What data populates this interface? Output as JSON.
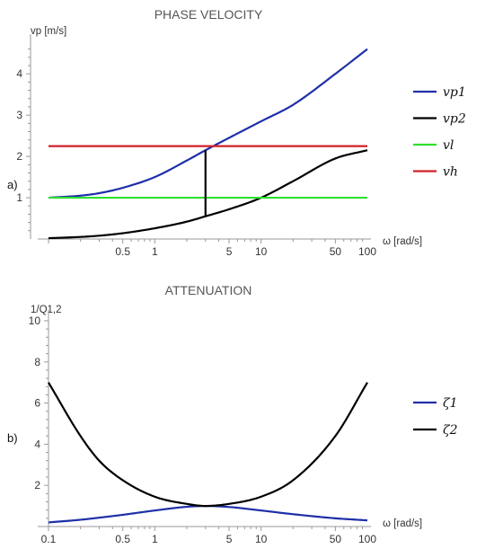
{
  "chart_data": [
    {
      "type": "line",
      "title": "PHASE VELOCITY",
      "panel_label": "a)",
      "xlabel": "ω [rad/s]",
      "ylabel": "vp [m/s]",
      "x_scale": "log",
      "xlim": [
        0.1,
        100
      ],
      "ylim": [
        0,
        4.7
      ],
      "x_ticks": [
        0.5,
        1,
        5,
        10,
        50,
        100
      ],
      "x_tick_labels": [
        "0.5",
        "1",
        "5",
        "10",
        "50",
        "100"
      ],
      "y_ticks": [
        1,
        2,
        3,
        4
      ],
      "y_tick_labels": [
        "1",
        "2",
        "3",
        "4"
      ],
      "legend_position": "right",
      "series": [
        {
          "name": "vp1",
          "color": "#1f2fa8",
          "x": [
            0.1,
            0.2,
            0.3,
            0.5,
            1,
            2,
            3,
            5,
            10,
            20,
            50,
            100
          ],
          "y": [
            1.0,
            1.05,
            1.11,
            1.24,
            1.5,
            1.9,
            2.15,
            2.45,
            2.85,
            3.25,
            4.0,
            4.6
          ]
        },
        {
          "name": "vp2",
          "color": "#000000",
          "x": [
            0.1,
            0.2,
            0.3,
            0.5,
            1,
            2,
            3,
            5,
            10,
            20,
            50,
            100
          ],
          "y": [
            0.02,
            0.05,
            0.08,
            0.14,
            0.26,
            0.42,
            0.55,
            0.72,
            1.0,
            1.4,
            1.95,
            2.15
          ]
        },
        {
          "name": "vl",
          "color": "#2ee02e",
          "x": [
            0.1,
            100
          ],
          "y": [
            1.0,
            1.0
          ]
        },
        {
          "name": "vh",
          "color": "#d0202a",
          "x": [
            0.1,
            100
          ],
          "y": [
            2.25,
            2.25
          ]
        }
      ],
      "annotations": [
        {
          "type": "vertical_segment",
          "x": 3,
          "y_from": 0.55,
          "y_to": 2.15,
          "color": "#000000"
        }
      ]
    },
    {
      "type": "line",
      "title": "ATTENUATION",
      "panel_label": "b)",
      "xlabel": "ω [rad/s]",
      "ylabel": "1/Q1,2",
      "x_scale": "log",
      "xlim": [
        0.1,
        100
      ],
      "ylim": [
        0,
        10
      ],
      "x_ticks": [
        0.1,
        0.5,
        1,
        5,
        10,
        50,
        100
      ],
      "x_tick_labels": [
        "0.1",
        "0.5",
        "1",
        "5",
        "10",
        "50",
        "100"
      ],
      "y_ticks": [
        2,
        4,
        6,
        8,
        10
      ],
      "y_tick_labels": [
        "2",
        "4",
        "6",
        "8",
        "10"
      ],
      "legend_position": "right",
      "series": [
        {
          "name": "ζ1",
          "color": "#1f2fa8",
          "x": [
            0.1,
            0.2,
            0.3,
            0.5,
            1,
            2,
            3,
            5,
            10,
            20,
            50,
            100
          ],
          "y": [
            0.2,
            0.33,
            0.43,
            0.57,
            0.78,
            0.96,
            1.0,
            0.95,
            0.78,
            0.6,
            0.4,
            0.3
          ]
        },
        {
          "name": "ζ2",
          "color": "#000000",
          "x": [
            0.1,
            0.2,
            0.3,
            0.5,
            1,
            2,
            3,
            5,
            10,
            20,
            50,
            100
          ],
          "y": [
            7.0,
            4.4,
            3.2,
            2.25,
            1.45,
            1.1,
            1.0,
            1.1,
            1.45,
            2.25,
            4.4,
            7.0
          ]
        }
      ]
    }
  ]
}
